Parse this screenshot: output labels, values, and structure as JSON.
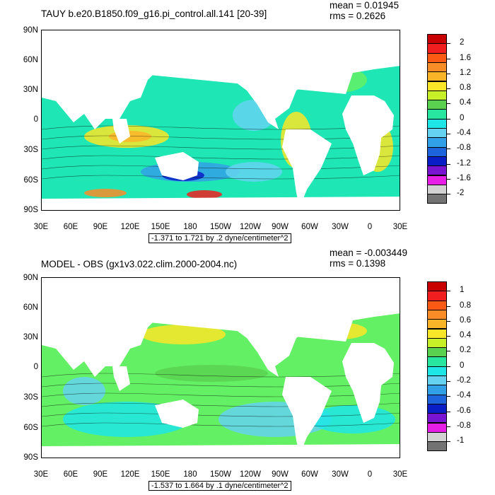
{
  "panels": [
    {
      "title": "TAUY b.e20.B1850.f09_g16.pi_control.all.141 [20-39]",
      "mean": "mean = 0.01945",
      "rms": "rms = 0.2626",
      "range_label": "-1.371 to 1.721 by .2 dyne/centimeter^2",
      "y_ticks": [
        "90N",
        "60N",
        "30N",
        "0",
        "30S",
        "60S",
        "90S"
      ],
      "x_ticks": [
        "30E",
        "60E",
        "90E",
        "120E",
        "150E",
        "180",
        "150W",
        "120W",
        "90W",
        "60W",
        "30W",
        "0",
        "30E"
      ],
      "colorbar_labels": [
        "2",
        "1.6",
        "1.2",
        "0.8",
        "0.4",
        "0",
        "-0.4",
        "-0.8",
        "-1.2",
        "-1.6",
        "-2"
      ],
      "colorbar_colors": [
        "#c80000",
        "#f01e1e",
        "#fa5a14",
        "#fa8c28",
        "#fab428",
        "#fae628",
        "#c8f028",
        "#5ad250",
        "#28e6a0",
        "#1ee6e6",
        "#64d2f0",
        "#32a0e6",
        "#1e64dc",
        "#0a1ec8",
        "#7814d2",
        "#e61ee6",
        "#d2d2d2",
        "#737373"
      ]
    },
    {
      "title": "MODEL - OBS (gx1v3.022.clim.2000-2004.nc)",
      "mean": "mean = -0.003449",
      "rms": "rms = 0.1398",
      "range_label": "-1.537 to 1.664 by .1 dyne/centimeter^2",
      "y_ticks": [
        "90N",
        "60N",
        "30N",
        "0",
        "30S",
        "60S",
        "90S"
      ],
      "x_ticks": [
        "30E",
        "60E",
        "90E",
        "120E",
        "150E",
        "180",
        "150W",
        "120W",
        "90W",
        "60W",
        "30W",
        "0",
        "30E"
      ],
      "colorbar_labels": [
        "1",
        "0.8",
        "0.6",
        "0.4",
        "0.2",
        "0",
        "-0.2",
        "-0.4",
        "-0.6",
        "-0.8",
        "-1"
      ],
      "colorbar_colors": [
        "#c80000",
        "#f01e1e",
        "#fa5a14",
        "#fa8c28",
        "#fab428",
        "#fae628",
        "#c8f028",
        "#5ad250",
        "#28e6a0",
        "#1ee6e6",
        "#64d2f0",
        "#32a0e6",
        "#1e64dc",
        "#0a1ec8",
        "#7814d2",
        "#e61ee6",
        "#d2d2d2",
        "#737373"
      ]
    }
  ],
  "map_colors": {
    "ocean_base": "#1ee6b4",
    "green": "#5ad250",
    "lightgreen": "#64f064",
    "cyan": "#1ee6e6",
    "lightblue": "#64d2f0",
    "blue": "#32a0e6",
    "yellow": "#fae628",
    "orange": "#fab428",
    "darkorange": "#fa8c28",
    "red": "#f01e1e",
    "navy": "#0a1ec8",
    "land": "#ffffff"
  }
}
